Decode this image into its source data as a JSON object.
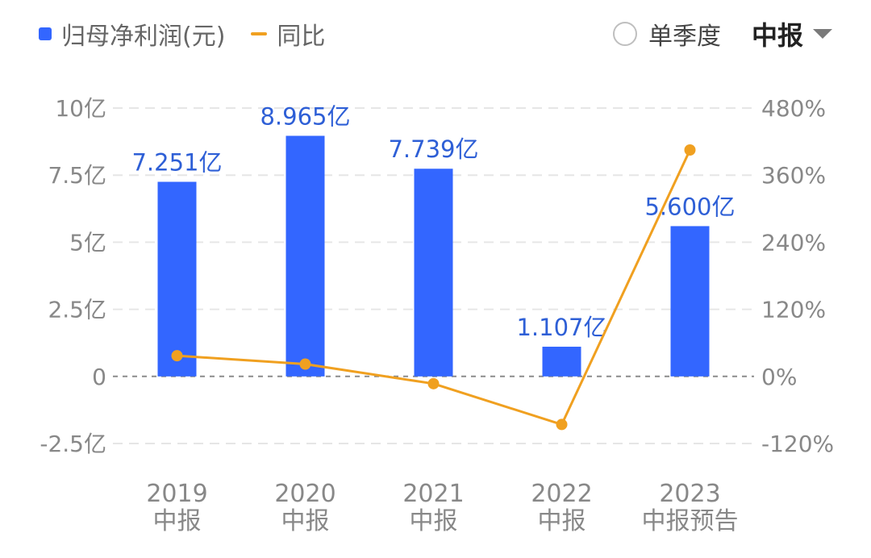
{
  "legend": {
    "bar_label": "归母净利润(元)",
    "line_label": "同比"
  },
  "controls": {
    "quarterly_label": "单季度",
    "period_label": "中报"
  },
  "colors": {
    "bar": "#3366ff",
    "line": "#f0a020",
    "axis_text": "#888888",
    "bar_label_text": "#2e5fd6",
    "grid": "#e6e6e6",
    "zero_line": "#8c8c8c"
  },
  "chart_data": {
    "type": "bar",
    "categories": [
      "2019\n中报",
      "2020\n中报",
      "2021\n中报",
      "2022\n中报",
      "2023\n中报预告"
    ],
    "series": [
      {
        "name": "归母净利润(元)",
        "type": "bar",
        "axis": "left",
        "values": [
          7.251,
          8.965,
          7.739,
          1.107,
          5.6
        ],
        "labels": [
          "7.251亿",
          "8.965亿",
          "7.739亿",
          "1.107亿",
          "5.600亿"
        ]
      },
      {
        "name": "同比",
        "type": "line",
        "axis": "right",
        "values": [
          37,
          22,
          -13,
          -86,
          405
        ]
      }
    ],
    "y_left": {
      "ylim": [
        -2.5,
        10
      ],
      "ticks": [
        10,
        7.5,
        5,
        2.5,
        0,
        -2.5
      ],
      "tick_labels": [
        "10亿",
        "7.5亿",
        "5亿",
        "2.5亿",
        "0",
        "-2.5亿"
      ]
    },
    "y_right": {
      "ylim": [
        -120,
        480
      ],
      "ticks": [
        480,
        360,
        240,
        120,
        0,
        -120
      ],
      "tick_labels": [
        "480%",
        "360%",
        "240%",
        "120%",
        "0%",
        "-120%"
      ]
    },
    "grid": true,
    "legend_position": "top-left"
  }
}
